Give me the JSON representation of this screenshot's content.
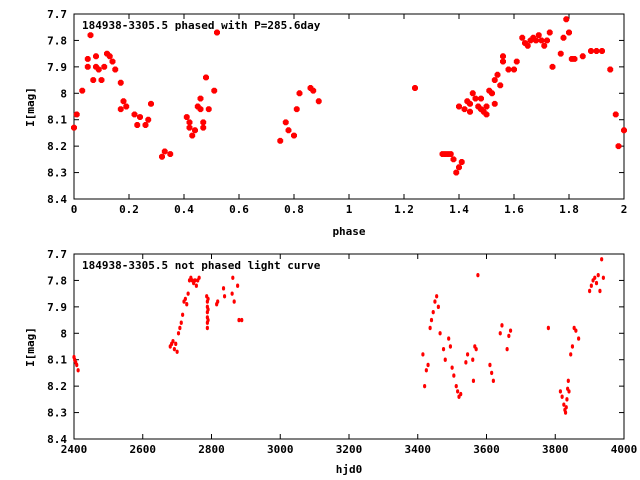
{
  "colors": {
    "points": "#ff0000",
    "axes": "#000000",
    "background": "#ffffff"
  },
  "chart_data": [
    {
      "type": "scatter",
      "title": "184938-3305.5 phased with P=285.6day",
      "xlabel": "phase",
      "ylabel": "I[mag]",
      "xlim": [
        0,
        2
      ],
      "ylim": [
        7.7,
        8.4
      ],
      "y_inverted": true,
      "marker": "filled-star",
      "xticks": [
        "0",
        "0.2",
        "0.4",
        "0.6",
        "0.8",
        "1",
        "1.2",
        "1.4",
        "1.6",
        "1.8",
        "2"
      ],
      "yticks": [
        "7.7",
        "7.8",
        "7.9",
        "8",
        "8.1",
        "8.2",
        "8.3",
        "8.4"
      ],
      "series": [
        {
          "x": [
            0.0,
            0.01,
            0.03,
            0.05,
            0.05,
            0.06,
            0.07,
            0.08,
            0.08,
            0.09,
            0.1,
            0.11,
            0.12,
            0.13,
            0.14,
            0.15,
            0.17,
            0.17,
            0.18,
            0.19,
            0.22,
            0.23,
            0.24,
            0.26,
            0.27,
            0.28,
            0.32,
            0.33,
            0.35,
            0.41,
            0.42,
            0.42,
            0.43,
            0.44,
            0.45,
            0.46,
            0.46,
            0.47,
            0.47,
            0.48,
            0.49,
            0.51,
            0.52,
            0.75,
            0.77,
            0.78,
            0.8,
            0.81,
            0.82,
            0.86,
            0.87,
            0.89,
            1.24,
            1.34,
            1.35,
            1.36,
            1.37,
            1.38,
            1.39,
            1.4,
            1.4,
            1.41,
            1.42,
            1.43,
            1.44,
            1.44,
            1.45,
            1.46,
            1.47,
            1.48,
            1.48,
            1.49,
            1.5,
            1.5,
            1.51,
            1.52,
            1.53,
            1.53,
            1.54,
            1.55,
            1.56,
            1.56,
            1.58,
            1.6,
            1.61,
            1.63,
            1.64,
            1.65,
            1.66,
            1.67,
            1.68,
            1.69,
            1.7,
            1.71,
            1.72,
            1.73,
            1.74,
            1.77,
            1.78,
            1.79,
            1.8,
            1.81,
            1.82,
            1.85,
            1.88,
            1.9,
            1.92,
            1.95,
            1.97,
            1.98,
            2.0
          ],
          "y": [
            8.13,
            8.08,
            7.99,
            7.9,
            7.87,
            7.78,
            7.95,
            7.86,
            7.9,
            7.91,
            7.95,
            7.9,
            7.85,
            7.86,
            7.88,
            7.91,
            7.96,
            8.06,
            8.03,
            8.05,
            8.08,
            8.12,
            8.09,
            8.12,
            8.1,
            8.04,
            8.24,
            8.22,
            8.23,
            8.09,
            8.11,
            8.13,
            8.16,
            8.14,
            8.05,
            8.02,
            8.06,
            8.11,
            8.13,
            7.94,
            8.06,
            7.99,
            7.77,
            8.18,
            8.11,
            8.14,
            8.16,
            8.06,
            8.0,
            7.98,
            7.99,
            8.03,
            7.98,
            8.23,
            8.23,
            8.23,
            8.23,
            8.25,
            8.3,
            8.28,
            8.05,
            8.26,
            8.06,
            8.03,
            8.04,
            8.07,
            8.0,
            8.02,
            8.05,
            8.02,
            8.06,
            8.07,
            8.08,
            8.05,
            7.99,
            8.0,
            8.04,
            7.95,
            7.93,
            7.97,
            7.88,
            7.86,
            7.91,
            7.91,
            7.88,
            7.79,
            7.81,
            7.82,
            7.8,
            7.79,
            7.8,
            7.78,
            7.8,
            7.82,
            7.8,
            7.77,
            7.9,
            7.85,
            7.79,
            7.72,
            7.77,
            7.87,
            7.87,
            7.86,
            7.84,
            7.84,
            7.84,
            7.91,
            8.08,
            8.2,
            8.14
          ]
        }
      ]
    },
    {
      "type": "scatter",
      "title": "184938-3305.5 not phased light curve",
      "xlabel": "hjd0",
      "ylabel": "I[mag]",
      "xlim": [
        2400,
        4000
      ],
      "ylim": [
        7.7,
        8.4
      ],
      "y_inverted": true,
      "marker": "dot",
      "xticks": [
        "2400",
        "2600",
        "2800",
        "3000",
        "3200",
        "3400",
        "3600",
        "3800",
        "4000"
      ],
      "yticks": [
        "7.7",
        "7.8",
        "7.9",
        "8",
        "8.1",
        "8.2",
        "8.3",
        "8.4"
      ],
      "series": [
        {
          "x": [
            2400,
            2402,
            2405,
            2408,
            2412,
            2680,
            2684,
            2688,
            2692,
            2696,
            2700,
            2704,
            2708,
            2712,
            2716,
            2720,
            2724,
            2728,
            2732,
            2736,
            2740,
            2744,
            2748,
            2752,
            2756,
            2760,
            2764,
            2786,
            2788,
            2788,
            2788,
            2788,
            2788,
            2788,
            2790,
            2790,
            2790,
            2815,
            2818,
            2835,
            2838,
            2860,
            2862,
            2866,
            2876,
            2880,
            2888,
            3415,
            3420,
            3425,
            3430,
            3436,
            3440,
            3445,
            3450,
            3455,
            3460,
            3465,
            3475,
            3480,
            3490,
            3495,
            3500,
            3505,
            3512,
            3516,
            3520,
            3525,
            3540,
            3545,
            3560,
            3562,
            3566,
            3570,
            3575,
            3610,
            3615,
            3620,
            3640,
            3645,
            3660,
            3665,
            3670,
            3780,
            3815,
            3820,
            3825,
            3828,
            3830,
            3832,
            3834,
            3836,
            3838,
            3840,
            3845,
            3850,
            3855,
            3860,
            3868,
            3900,
            3905,
            3910,
            3915,
            3920,
            3925,
            3930,
            3935,
            3940
          ],
          "y": [
            8.09,
            8.1,
            8.11,
            8.12,
            8.14,
            8.05,
            8.04,
            8.03,
            8.06,
            8.04,
            8.07,
            8.0,
            7.98,
            7.96,
            7.93,
            7.88,
            7.87,
            7.89,
            7.85,
            7.8,
            7.79,
            7.8,
            7.81,
            7.8,
            7.82,
            7.8,
            7.79,
            7.86,
            7.88,
            7.9,
            7.92,
            7.94,
            7.96,
            7.98,
            7.87,
            7.91,
            7.95,
            7.89,
            7.88,
            7.83,
            7.86,
            7.85,
            7.79,
            7.88,
            7.82,
            7.95,
            7.95,
            8.08,
            8.2,
            8.14,
            8.12,
            7.98,
            7.95,
            7.92,
            7.88,
            7.86,
            7.9,
            8.0,
            8.06,
            8.1,
            8.02,
            8.05,
            8.13,
            8.16,
            8.2,
            8.22,
            8.24,
            8.23,
            8.11,
            8.08,
            8.1,
            8.18,
            8.05,
            8.06,
            7.78,
            8.12,
            8.15,
            8.18,
            8.0,
            7.97,
            8.06,
            8.01,
            7.99,
            7.98,
            8.22,
            8.24,
            8.27,
            8.29,
            8.3,
            8.28,
            8.25,
            8.21,
            8.18,
            8.22,
            8.08,
            8.05,
            7.98,
            7.99,
            8.02,
            7.84,
            7.82,
            7.8,
            7.79,
            7.81,
            7.78,
            7.84,
            7.72,
            7.79
          ]
        }
      ]
    }
  ]
}
